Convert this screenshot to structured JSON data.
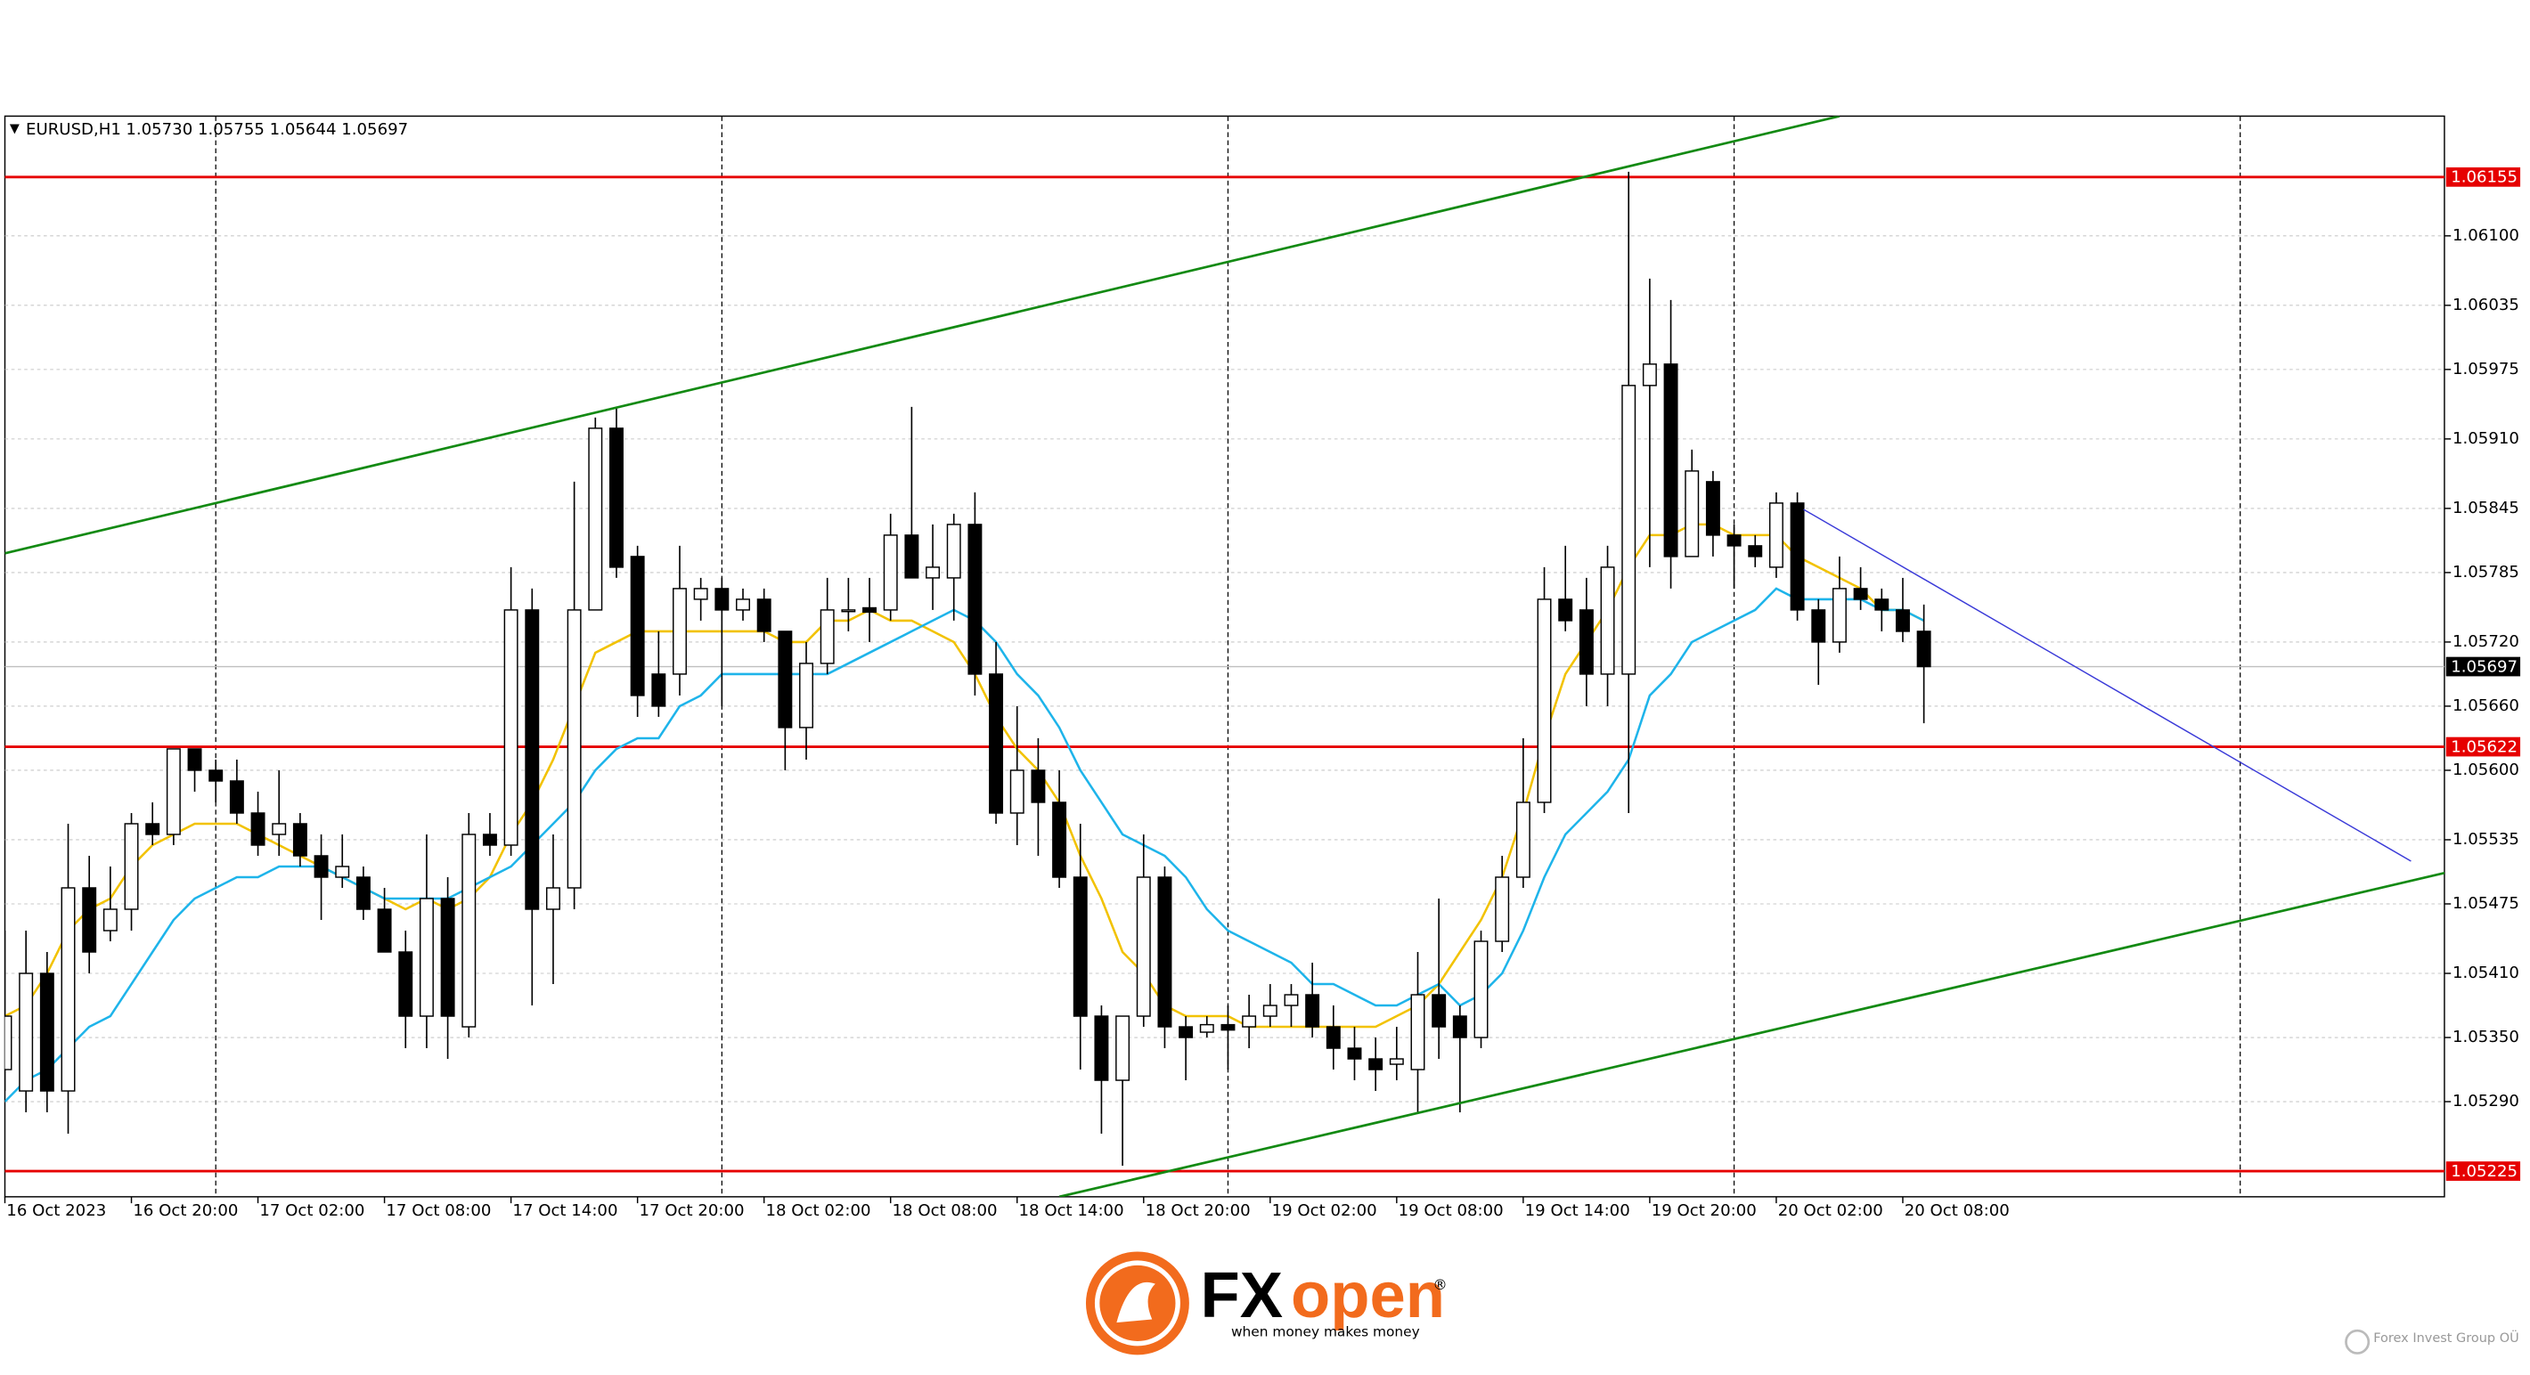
{
  "chart_data": {
    "type": "candlestick",
    "title": "EURUSD,H1",
    "quote": "1.05730 1.05755 1.05644 1.05697",
    "categories": [
      "16 Oct 2023",
      null,
      null,
      null,
      null,
      null,
      "16 Oct 20:00",
      null,
      null,
      null,
      null,
      null,
      "17 Oct 02:00",
      null,
      null,
      null,
      null,
      null,
      "17 Oct 08:00",
      null,
      null,
      null,
      null,
      null,
      "17 Oct 14:00",
      null,
      null,
      null,
      null,
      null,
      "17 Oct 20:00",
      null,
      null,
      null,
      null,
      null,
      "18 Oct 02:00",
      null,
      null,
      null,
      null,
      null,
      "18 Oct 08:00",
      null,
      null,
      null,
      null,
      null,
      "18 Oct 14:00",
      null,
      null,
      null,
      null,
      null,
      "18 Oct 20:00",
      null,
      null,
      null,
      null,
      null,
      "19 Oct 02:00",
      null,
      null,
      null,
      null,
      null,
      "19 Oct 08:00",
      null,
      null,
      null,
      null,
      null,
      "19 Oct 14:00",
      null,
      null,
      null,
      null,
      null,
      "19 Oct 20:00",
      null,
      null,
      null,
      null,
      null,
      "20 Oct 02:00",
      null,
      null,
      null,
      null,
      null,
      "20 Oct 08:00",
      null
    ],
    "open": [
      1.0532,
      1.053,
      1.0541,
      1.053,
      1.0549,
      1.0545,
      1.0547,
      1.0555,
      1.0554,
      1.0562,
      1.056,
      1.0559,
      1.0556,
      1.0554,
      1.0555,
      1.0552,
      1.055,
      1.055,
      1.0547,
      1.0543,
      1.0537,
      1.0548,
      1.0536,
      1.0554,
      1.0553,
      1.0575,
      1.0547,
      1.0549,
      1.0575,
      1.0592,
      1.058,
      1.0569,
      1.0569,
      1.0576,
      1.0577,
      1.0575,
      1.0576,
      1.0573,
      1.0564,
      1.057,
      1.0575,
      1.05752,
      1.0575,
      1.0582,
      1.0578,
      1.0578,
      1.0583,
      1.0569,
      1.0556,
      1.056,
      1.0557,
      1.055,
      1.0537,
      1.0531,
      1.0537,
      1.055,
      1.0536,
      1.05355,
      1.05362,
      1.0536,
      1.0537,
      1.0538,
      1.0539,
      1.0536,
      1.0534,
      1.0533,
      1.05325,
      1.0532,
      1.0539,
      1.0537,
      1.0535,
      1.0544,
      1.055,
      1.0557,
      1.0576,
      1.0575,
      1.0569,
      1.0569,
      1.0596,
      1.0598,
      1.058,
      1.0587,
      1.0582,
      1.0581,
      1.0579,
      1.0585,
      1.0575,
      1.0572,
      1.0577,
      1.0576,
      1.0575,
      1.0573
    ],
    "high": [
      1.0545,
      1.0545,
      1.0543,
      1.0555,
      1.0552,
      1.0551,
      1.0556,
      1.0557,
      1.0562,
      1.0562,
      1.0561,
      1.0561,
      1.0558,
      1.056,
      1.0556,
      1.0554,
      1.0554,
      1.0551,
      1.0549,
      1.0545,
      1.0554,
      1.055,
      1.0556,
      1.0556,
      1.0579,
      1.0577,
      1.0554,
      1.0587,
      1.0593,
      1.0594,
      1.0581,
      1.0573,
      1.0581,
      1.0578,
      1.0578,
      1.0577,
      1.0577,
      1.0573,
      1.0572,
      1.0578,
      1.0578,
      1.0578,
      1.0584,
      1.0594,
      1.0583,
      1.0584,
      1.0586,
      1.0572,
      1.0566,
      1.0563,
      1.056,
      1.0555,
      1.0538,
      1.0537,
      1.0554,
      1.0551,
      1.0537,
      1.0537,
      1.0538,
      1.0539,
      1.054,
      1.054,
      1.0542,
      1.0538,
      1.0536,
      1.0535,
      1.0536,
      1.0543,
      1.0548,
      1.0538,
      1.0545,
      1.0552,
      1.0563,
      1.0579,
      1.0581,
      1.0578,
      1.0581,
      1.0616,
      1.0606,
      1.0604,
      1.059,
      1.0588,
      1.0583,
      1.0582,
      1.0586,
      1.0586,
      1.0576,
      1.058,
      1.0579,
      1.0577,
      1.0578,
      1.05755
    ],
    "low": [
      1.053,
      1.0528,
      1.0528,
      1.0526,
      1.0541,
      1.0544,
      1.0545,
      1.0553,
      1.0553,
      1.0558,
      1.0557,
      1.0555,
      1.0552,
      1.0552,
      1.0551,
      1.0546,
      1.0549,
      1.0546,
      1.0543,
      1.0534,
      1.0534,
      1.0533,
      1.0535,
      1.0552,
      1.0552,
      1.0538,
      1.054,
      1.0547,
      1.0575,
      1.0578,
      1.0565,
      1.0565,
      1.0567,
      1.0574,
      1.0566,
      1.0574,
      1.0572,
      1.056,
      1.0561,
      1.0569,
      1.0573,
      1.0572,
      1.0574,
      1.0578,
      1.0575,
      1.0574,
      1.0567,
      1.0555,
      1.0553,
      1.0552,
      1.0549,
      1.0532,
      1.0526,
      1.0523,
      1.0536,
      1.0534,
      1.0531,
      1.0535,
      1.0532,
      1.0534,
      1.0536,
      1.0536,
      1.0535,
      1.0532,
      1.0531,
      1.053,
      1.0531,
      1.0528,
      1.0533,
      1.0528,
      1.0534,
      1.0543,
      1.0549,
      1.0556,
      1.0573,
      1.0566,
      1.0566,
      1.0556,
      1.0579,
      1.0577,
      1.058,
      1.058,
      1.0577,
      1.0579,
      1.0578,
      1.0574,
      1.0568,
      1.0571,
      1.0575,
      1.0573,
      1.0572,
      1.05644
    ],
    "close": [
      1.0537,
      1.0541,
      1.053,
      1.0549,
      1.0543,
      1.0547,
      1.0555,
      1.0554,
      1.0562,
      1.056,
      1.0559,
      1.0556,
      1.0553,
      1.0555,
      1.0552,
      1.055,
      1.0551,
      1.0547,
      1.0543,
      1.0537,
      1.0548,
      1.0537,
      1.0554,
      1.0553,
      1.0575,
      1.0547,
      1.0549,
      1.0575,
      1.0592,
      1.0579,
      1.0567,
      1.0566,
      1.0577,
      1.0577,
      1.0575,
      1.0576,
      1.0573,
      1.0564,
      1.057,
      1.0575,
      1.0575,
      1.05748,
      1.0582,
      1.0578,
      1.0579,
      1.0583,
      1.0569,
      1.0556,
      1.056,
      1.0557,
      1.055,
      1.0537,
      1.0531,
      1.0537,
      1.055,
      1.0536,
      1.0535,
      1.05362,
      1.05357,
      1.0537,
      1.0538,
      1.0539,
      1.0536,
      1.0534,
      1.0533,
      1.0532,
      1.0533,
      1.0539,
      1.0536,
      1.0535,
      1.0544,
      1.055,
      1.0557,
      1.0576,
      1.0574,
      1.0569,
      1.0579,
      1.0596,
      1.0598,
      1.058,
      1.0588,
      1.0582,
      1.0581,
      1.058,
      1.0585,
      1.0575,
      1.0572,
      1.0577,
      1.0576,
      1.0575,
      1.0573,
      1.05697
    ],
    "up_color": "#ffffff",
    "down_color": "#000000",
    "lines": [
      {
        "color": "#f2c200",
        "values": [
          1.0537,
          1.0538,
          1.0541,
          1.0545,
          1.0547,
          1.0548,
          1.0551,
          1.0553,
          1.0554,
          1.0555,
          1.0555,
          1.0555,
          1.0554,
          1.0553,
          1.0552,
          1.0551,
          1.055,
          1.0549,
          1.0548,
          1.0547,
          1.0548,
          1.0547,
          1.0548,
          1.055,
          1.0554,
          1.0557,
          1.0561,
          1.0566,
          1.0571,
          1.0572,
          1.0573,
          1.0573,
          1.0573,
          1.0573,
          1.0573,
          1.0573,
          1.0573,
          1.0572,
          1.0572,
          1.0574,
          1.0574,
          1.0575,
          1.0574,
          1.0574,
          1.0573,
          1.0572,
          1.0569,
          1.0565,
          1.0562,
          1.056,
          1.0557,
          1.0552,
          1.0548,
          1.0543,
          1.0541,
          1.0538,
          1.0537,
          1.0537,
          1.0537,
          1.0536,
          1.0536,
          1.0536,
          1.0536,
          1.0536,
          1.0536,
          1.0536,
          1.0537,
          1.0538,
          1.054,
          1.0543,
          1.0546,
          1.055,
          1.0556,
          1.0563,
          1.0569,
          1.0572,
          1.0575,
          1.0579,
          1.0582,
          1.0582,
          1.0583,
          1.0583,
          1.0582,
          1.0582,
          1.0582,
          1.058,
          1.0579,
          1.0578,
          1.0577,
          1.0575,
          1.0575,
          1.0574
        ]
      },
      {
        "color": "#1eb4ea",
        "values": [
          1.0529,
          1.0531,
          1.0532,
          1.0534,
          1.0536,
          1.0537,
          1.054,
          1.0543,
          1.0546,
          1.0548,
          1.0549,
          1.055,
          1.055,
          1.0551,
          1.0551,
          1.0551,
          1.055,
          1.0549,
          1.0548,
          1.0548,
          1.0548,
          1.0548,
          1.0549,
          1.055,
          1.0551,
          1.0553,
          1.0555,
          1.0557,
          1.056,
          1.0562,
          1.0563,
          1.0563,
          1.0566,
          1.0567,
          1.0569,
          1.0569,
          1.0569,
          1.0569,
          1.0569,
          1.0569,
          1.057,
          1.0571,
          1.0572,
          1.0573,
          1.0574,
          1.0575,
          1.0574,
          1.0572,
          1.0569,
          1.0567,
          1.0564,
          1.056,
          1.0557,
          1.0554,
          1.0553,
          1.0552,
          1.055,
          1.0547,
          1.0545,
          1.0544,
          1.0543,
          1.0542,
          1.054,
          1.054,
          1.0539,
          1.0538,
          1.0538,
          1.0539,
          1.054,
          1.0538,
          1.0539,
          1.0541,
          1.0545,
          1.055,
          1.0554,
          1.0556,
          1.0558,
          1.0561,
          1.0567,
          1.0569,
          1.0572,
          1.0573,
          1.0574,
          1.0575,
          1.0577,
          1.0576,
          1.0576,
          1.0576,
          1.0576,
          1.0575,
          1.0575,
          1.0574
        ]
      }
    ],
    "trendlines": [
      {
        "color": "#138a13",
        "points": [
          [
            0,
            1.05803
          ],
          [
            87,
            1.06212
          ]
        ]
      },
      {
        "color": "#138a13",
        "points": [
          [
            50,
            1.05201
          ],
          [
            115.7,
            1.05504
          ]
        ]
      },
      {
        "color": "#3a3ad8",
        "points": [
          [
            85.3,
            1.05844
          ],
          [
            114.1,
            1.05515
          ]
        ]
      }
    ],
    "hlines": [
      {
        "value": 1.06155,
        "color": "#e60000"
      },
      {
        "value": 1.05622,
        "color": "#e60000"
      },
      {
        "value": 1.05225,
        "color": "#e60000"
      },
      {
        "value": 1.05697,
        "color": "#c0c0c0"
      }
    ],
    "day_separators": [
      10,
      34,
      58,
      82,
      106
    ],
    "ylim": [
      1.05201,
      1.06212
    ],
    "yticks": [
      {
        "value": 1.061,
        "label": "1.06100"
      },
      1.06035,
      1.05975,
      {
        "value": 1.0591,
        "label": "1.05910"
      },
      1.05845,
      1.05785,
      {
        "value": 1.0572,
        "label": "1.05720"
      },
      {
        "value": 1.0566,
        "label": "1.05660"
      },
      {
        "value": 1.056,
        "label": "1.05600"
      },
      1.05535,
      1.05475,
      {
        "value": 1.0541,
        "label": "1.05410"
      },
      {
        "value": 1.0535,
        "label": "1.05350"
      },
      {
        "value": 1.0529,
        "label": "1.05290"
      }
    ],
    "grid": true
  },
  "footer": {
    "brand_fx": "FX",
    "brand_open": "open",
    "registered": "®",
    "tagline": "when money makes money",
    "company": "Forex Invest Group OÜ"
  }
}
